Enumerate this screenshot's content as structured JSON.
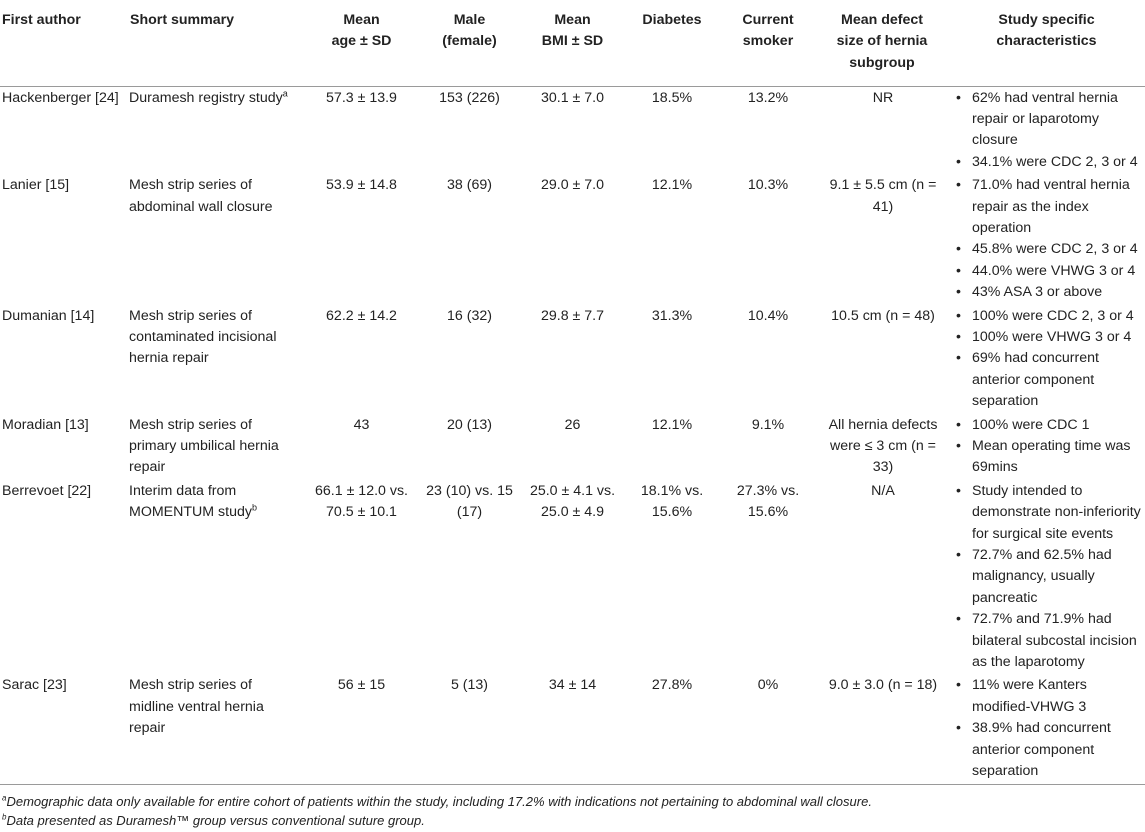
{
  "headers": {
    "author": "First author",
    "summary": "Short summary",
    "age": [
      "Mean",
      "age ± SD"
    ],
    "male": [
      "Male",
      "(female)"
    ],
    "bmi": [
      "Mean",
      "BMI ± SD"
    ],
    "diabetes": "Diabetes",
    "smoker": [
      "Current",
      "smoker"
    ],
    "defect": [
      "Mean defect",
      "size of hernia",
      "subgroup"
    ],
    "characteristics": [
      "Study specific",
      "characteristics"
    ]
  },
  "rows": [
    {
      "author": "Hackenberger [24]",
      "summary": "Duramesh registry study",
      "summary_sup": "a",
      "age": "57.3 ± 13.9",
      "male": "153 (226)",
      "bmi": "30.1 ± 7.0",
      "diabetes": "18.5%",
      "smoker": "13.2%",
      "defect": "NR",
      "characteristics": [
        "62% had ventral hernia repair or laparotomy closure",
        "34.1% were CDC 2, 3 or 4"
      ]
    },
    {
      "author": "Lanier [15]",
      "summary": "Mesh strip series of abdominal wall closure",
      "summary_sup": "",
      "age": "53.9 ± 14.8",
      "male": "38 (69)",
      "bmi": "29.0 ± 7.0",
      "diabetes": "12.1%",
      "smoker": "10.3%",
      "defect": "9.1 ± 5.5 cm (n = 41)",
      "characteristics": [
        "71.0% had ventral hernia repair as the index operation",
        "45.8% were CDC 2, 3 or 4",
        "44.0% were VHWG 3 or 4",
        "43% ASA 3 or above"
      ]
    },
    {
      "author": "Dumanian [14]",
      "summary": "Mesh strip series of contaminated incisional hernia repair",
      "summary_sup": "",
      "age": "62.2 ± 14.2",
      "male": "16 (32)",
      "bmi": "29.8 ± 7.7",
      "diabetes": "31.3%",
      "smoker": "10.4%",
      "defect": "10.5 cm (n = 48)",
      "characteristics": [
        "100% were CDC 2, 3 or 4",
        "100% were VHWG 3 or 4",
        "69% had concurrent anterior component separation"
      ]
    },
    {
      "author": "Moradian [13]",
      "summary": "Mesh strip series of primary umbilical hernia repair",
      "summary_sup": "",
      "age": "43",
      "male": "20 (13)",
      "bmi": "26",
      "diabetes": "12.1%",
      "smoker": "9.1%",
      "defect": "All hernia defects were ≤ 3 cm (n = 33)",
      "characteristics": [
        "100% were CDC 1",
        "Mean operating time was 69mins"
      ]
    },
    {
      "author": "Berrevoet [22]",
      "summary": "Interim data from MOMENTUM study",
      "summary_sup": "b",
      "age": "66.1 ± 12.0 vs. 70.5 ± 10.1",
      "male": "23 (10) vs. 15 (17)",
      "bmi": "25.0 ± 4.1 vs. 25.0 ± 4.9",
      "diabetes": "18.1% vs. 15.6%",
      "smoker": "27.3% vs. 15.6%",
      "defect": "N/A",
      "characteristics": [
        "Study intended to demonstrate non-inferiority for surgical site events",
        "72.7% and 62.5% had malignancy, usually pancreatic",
        "72.7% and 71.9% had bilateral subcostal incision as the laparotomy"
      ]
    },
    {
      "author": "Sarac [23]",
      "summary": "Mesh strip series of midline ventral hernia repair",
      "summary_sup": "",
      "age": "56 ± 15",
      "male": "5 (13)",
      "bmi": "34 ± 14",
      "diabetes": "27.8%",
      "smoker": "0%",
      "defect": "9.0 ± 3.0 (n = 18)",
      "characteristics": [
        "11% were Kanters modified-VHWG 3",
        "38.9% had concurrent anterior component separation"
      ]
    }
  ],
  "footnotes": [
    {
      "mark": "a",
      "text": "Demographic data only available for entire cohort of patients within the study, including 17.2% with indications not pertaining to abdominal wall closure."
    },
    {
      "mark": "b",
      "text": "Data presented as Duramesh™ group versus conventional suture group."
    }
  ],
  "bullet_glyph": "•"
}
